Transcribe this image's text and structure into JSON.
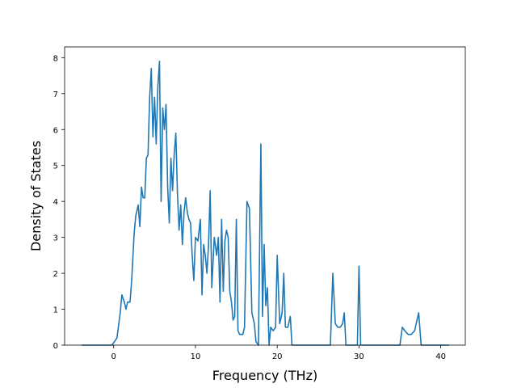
{
  "chart_data": {
    "type": "line",
    "title": "",
    "xlabel": "Frequency (THz)",
    "ylabel": "Density of States",
    "xlim": [
      -6,
      43
    ],
    "ylim": [
      0,
      8.3
    ],
    "xticks": [
      0,
      10,
      20,
      30,
      40
    ],
    "yticks": [
      0,
      1,
      2,
      3,
      4,
      5,
      6,
      7,
      8
    ],
    "grid": false,
    "legend": "none",
    "series": [
      {
        "color": "#1f77b4",
        "x": [
          -3.9,
          -0.2,
          0.4,
          0.8,
          1.0,
          1.3,
          1.5,
          1.7,
          2.0,
          2.2,
          2.5,
          2.7,
          3.0,
          3.2,
          3.4,
          3.6,
          3.8,
          4.0,
          4.2,
          4.4,
          4.6,
          4.8,
          5.0,
          5.2,
          5.4,
          5.6,
          5.8,
          6.0,
          6.2,
          6.4,
          6.6,
          6.8,
          7.0,
          7.2,
          7.4,
          7.6,
          7.8,
          8.0,
          8.2,
          8.4,
          8.6,
          8.8,
          9.0,
          9.2,
          9.4,
          9.6,
          9.8,
          10.0,
          10.3,
          10.6,
          10.8,
          11.0,
          11.2,
          11.4,
          11.6,
          11.8,
          12.0,
          12.3,
          12.6,
          12.8,
          13.0,
          13.2,
          13.4,
          13.6,
          13.8,
          14.0,
          14.2,
          14.4,
          14.6,
          14.8,
          15.0,
          15.2,
          15.4,
          15.6,
          15.8,
          16.0,
          16.3,
          16.6,
          16.9,
          17.2,
          17.4,
          17.7,
          18.0,
          18.2,
          18.4,
          18.6,
          18.8,
          19.0,
          19.2,
          19.5,
          19.8,
          20.0,
          20.3,
          20.6,
          20.8,
          21.0,
          21.3,
          21.6,
          21.8,
          22.0,
          22.2,
          22.5,
          22.8,
          26.5,
          26.8,
          27.1,
          27.4,
          27.7,
          28.0,
          28.2,
          28.4,
          29.6,
          29.8,
          30.0,
          30.2,
          35.0,
          35.3,
          35.6,
          36.0,
          36.4,
          36.8,
          37.0,
          37.3,
          37.6,
          41.0
        ],
        "y": [
          0.0,
          0.0,
          0.2,
          0.9,
          1.4,
          1.2,
          1.0,
          1.2,
          1.2,
          1.8,
          3.1,
          3.6,
          3.9,
          3.3,
          4.4,
          4.1,
          4.1,
          5.2,
          5.3,
          6.9,
          7.7,
          5.8,
          6.9,
          5.6,
          7.2,
          7.9,
          4.0,
          6.6,
          6.0,
          6.7,
          4.4,
          3.4,
          5.2,
          4.3,
          5.3,
          5.9,
          4.2,
          3.2,
          3.9,
          2.8,
          3.7,
          4.1,
          3.7,
          3.5,
          3.4,
          2.5,
          1.8,
          3.0,
          2.9,
          3.5,
          1.4,
          2.8,
          2.5,
          2.0,
          2.8,
          4.3,
          1.6,
          3.0,
          2.5,
          3.0,
          1.2,
          3.5,
          1.5,
          2.9,
          3.2,
          3.0,
          1.5,
          1.2,
          0.7,
          0.8,
          3.5,
          0.4,
          0.3,
          0.3,
          0.3,
          0.5,
          4.0,
          3.8,
          0.9,
          0.6,
          0.1,
          0.0,
          5.6,
          0.8,
          2.8,
          1.1,
          1.6,
          0.0,
          0.5,
          0.4,
          0.5,
          2.5,
          0.6,
          0.9,
          2.0,
          0.5,
          0.5,
          0.8,
          0.0,
          0.0,
          0.0,
          0.0,
          0.0,
          0.0,
          2.0,
          0.6,
          0.5,
          0.5,
          0.6,
          0.9,
          0.0,
          0.0,
          0.0,
          2.2,
          0.0,
          0.0,
          0.5,
          0.4,
          0.3,
          0.3,
          0.4,
          0.6,
          0.9,
          0.0,
          0.0
        ]
      }
    ]
  }
}
